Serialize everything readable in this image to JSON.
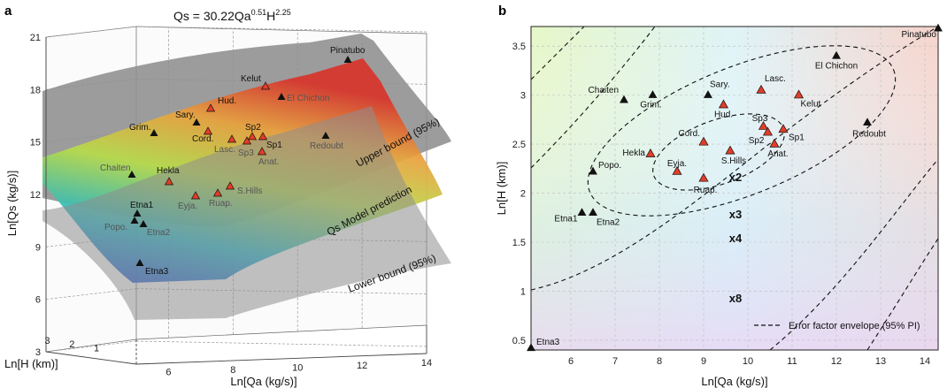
{
  "panel_a": {
    "letter": "a",
    "equation": {
      "prefix": "Qs = 30.22Qa",
      "exp1": "0.51",
      "mid": "H",
      "exp2": "2.25"
    },
    "xlabel": "Ln[Qa (kg/s)]",
    "ylabel": "Ln[Qs (kg/s)]",
    "zlabel": "Ln[H (km)]",
    "surface_labels": {
      "upper": "Upper bound (95%)",
      "model": "Qs Model prediction",
      "lower": "Lower bound (95%)"
    }
  },
  "panel_b": {
    "letter": "b",
    "xlabel": "Ln[Qa (kg/s)]",
    "ylabel": "Ln[H (km)]",
    "envelope_labels": [
      "x2",
      "x3",
      "x4",
      "x8"
    ],
    "legend": "Error factor envelope (95% PI)"
  },
  "colors": {
    "red_marker": "#e23d28",
    "black_marker": "#111111",
    "surface_grey": "#8e8e8e"
  },
  "chart_data": [
    {
      "type": "scatter",
      "panel": "a",
      "title": "Qs = 30.22Qa^0.51 H^2.25",
      "xlabel": "Ln[Qa (kg/s)]",
      "ylabel": "Ln[Qs (kg/s)]",
      "zlabel": "Ln[H (km)]",
      "xticks": [
        "6",
        "8",
        "10",
        "12",
        "14"
      ],
      "yticks": [
        "3",
        "6",
        "9",
        "12",
        "15",
        "18",
        "21"
      ],
      "zticks": [
        "1",
        "2",
        "3"
      ],
      "xlim": [
        5,
        14
      ],
      "ylim": [
        3,
        21
      ],
      "zlim": [
        0.4,
        3.7
      ],
      "grid": true,
      "points": [
        {
          "label": "Pinatubo",
          "y": 19.5,
          "marker": "black"
        },
        {
          "label": "Kelut",
          "y": 17.9,
          "marker": "red"
        },
        {
          "label": "El Chichon",
          "y": 17.2,
          "marker": "black"
        },
        {
          "label": "Hud.",
          "y": 16.6,
          "marker": "red"
        },
        {
          "label": "Sary.",
          "y": 15.6,
          "marker": "black"
        },
        {
          "label": "Grim.",
          "y": 14.9,
          "marker": "black"
        },
        {
          "label": "Cord.",
          "y": 15.1,
          "marker": "red"
        },
        {
          "label": "Sp2",
          "y": 14.6,
          "marker": "red"
        },
        {
          "label": "Sp1",
          "y": 14.6,
          "marker": "red"
        },
        {
          "label": "Lasc.",
          "y": 14.5,
          "marker": "red"
        },
        {
          "label": "Sp3",
          "y": 14.4,
          "marker": "red"
        },
        {
          "label": "Anat.",
          "y": 13.7,
          "marker": "red"
        },
        {
          "label": "Redoubt",
          "y": 14.8,
          "marker": "black"
        },
        {
          "label": "Chaiten",
          "y": 12.2,
          "marker": "black"
        },
        {
          "label": "Hekla",
          "y": 11.8,
          "marker": "red"
        },
        {
          "label": "Eyja.",
          "y": 11.0,
          "marker": "red"
        },
        {
          "label": "Ruap.",
          "y": 11.1,
          "marker": "red"
        },
        {
          "label": "S.Hills",
          "y": 11.5,
          "marker": "red"
        },
        {
          "label": "Etna1",
          "y": 9.8,
          "marker": "black"
        },
        {
          "label": "Popo.",
          "y": 9.3,
          "marker": "black"
        },
        {
          "label": "Etna2",
          "y": 9.1,
          "marker": "black"
        },
        {
          "label": "Etna3",
          "y": 6.7,
          "marker": "black"
        }
      ]
    },
    {
      "type": "scatter",
      "panel": "b",
      "xlabel": "Ln[Qa (kg/s)]",
      "ylabel": "Ln[H (km)]",
      "xticks": [
        "6",
        "7",
        "8",
        "9",
        "10",
        "11",
        "12",
        "13",
        "14"
      ],
      "yticks": [
        "0.5",
        "1",
        "1.5",
        "2",
        "2.5",
        "3",
        "3.5"
      ],
      "xlim": [
        5.1,
        14.3
      ],
      "ylim": [
        0.4,
        3.7
      ],
      "grid": true,
      "legend": {
        "entries": [
          "Error factor envelope (95% PI)"
        ],
        "placement": "bottom-right"
      },
      "points": [
        {
          "label": "Pinatubo",
          "x": 14.3,
          "y": 3.68,
          "marker": "black"
        },
        {
          "label": "El Chichon",
          "x": 12.0,
          "y": 3.4,
          "marker": "black"
        },
        {
          "label": "Lasc.",
          "x": 10.3,
          "y": 3.05,
          "marker": "red"
        },
        {
          "label": "Kelut",
          "x": 11.15,
          "y": 3.0,
          "marker": "red"
        },
        {
          "label": "Sary.",
          "x": 9.1,
          "y": 3.0,
          "marker": "black"
        },
        {
          "label": "Chaiten",
          "x": 7.2,
          "y": 2.95,
          "marker": "black"
        },
        {
          "label": "Grim.",
          "x": 7.85,
          "y": 3.0,
          "marker": "black"
        },
        {
          "label": "Hud.",
          "x": 9.45,
          "y": 2.9,
          "marker": "red"
        },
        {
          "label": "Sp3",
          "x": 10.35,
          "y": 2.68,
          "marker": "red"
        },
        {
          "label": "Sp1",
          "x": 10.8,
          "y": 2.65,
          "marker": "red"
        },
        {
          "label": "Sp2",
          "x": 10.45,
          "y": 2.62,
          "marker": "red"
        },
        {
          "label": "Redoubt",
          "x": 12.7,
          "y": 2.72,
          "marker": "black"
        },
        {
          "label": "Cord.",
          "x": 9.0,
          "y": 2.52,
          "marker": "red"
        },
        {
          "label": "Anat.",
          "x": 10.6,
          "y": 2.5,
          "marker": "red"
        },
        {
          "label": "S.Hills",
          "x": 9.6,
          "y": 2.43,
          "marker": "red"
        },
        {
          "label": "Hekla",
          "x": 7.8,
          "y": 2.4,
          "marker": "red"
        },
        {
          "label": "Eyja.",
          "x": 8.4,
          "y": 2.22,
          "marker": "red"
        },
        {
          "label": "Popo.",
          "x": 6.5,
          "y": 2.22,
          "marker": "black"
        },
        {
          "label": "Ruap.",
          "x": 9.0,
          "y": 2.15,
          "marker": "red"
        },
        {
          "label": "Etna1",
          "x": 6.25,
          "y": 1.8,
          "marker": "black"
        },
        {
          "label": "Etna2",
          "x": 6.5,
          "y": 1.8,
          "marker": "black"
        },
        {
          "label": "Etna3",
          "x": 5.1,
          "y": 0.42,
          "marker": "black"
        }
      ],
      "envelopes": [
        {
          "label": "x2",
          "factor": 2
        },
        {
          "label": "x3",
          "factor": 3
        },
        {
          "label": "x4",
          "factor": 4
        },
        {
          "label": "x8",
          "factor": 8
        }
      ]
    }
  ]
}
